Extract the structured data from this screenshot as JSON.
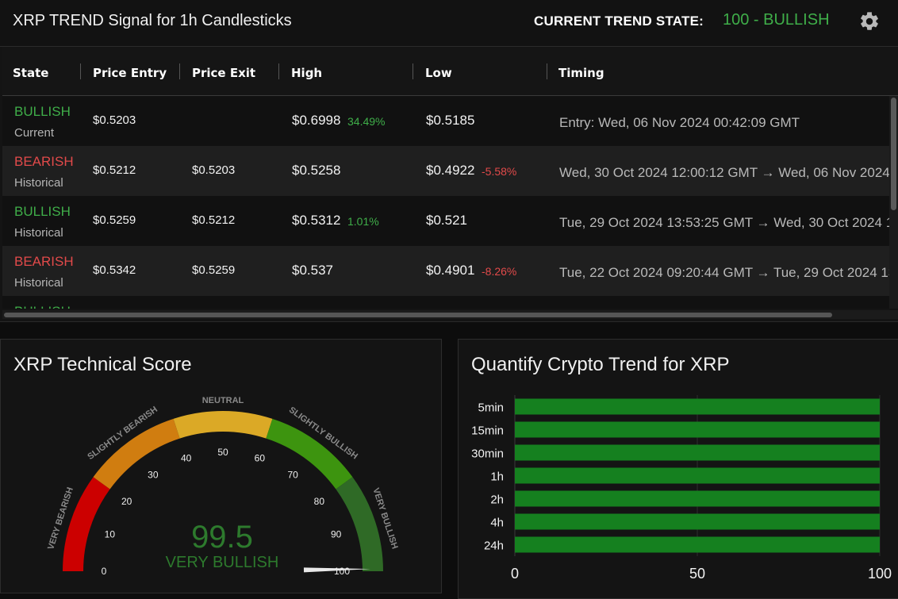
{
  "header": {
    "title": "XRP TREND Signal for 1h Candlesticks",
    "trend_label": "CURRENT TREND STATE:",
    "trend_value": "100 - BULLISH",
    "settings_icon": "gear-icon"
  },
  "table": {
    "columns": [
      "State",
      "Price Entry",
      "Price Exit",
      "High",
      "Low",
      "Timing"
    ],
    "rows": [
      {
        "state": "BULLISH",
        "sub": "Current",
        "entry": "$0.5203",
        "exit": "",
        "high": "$0.6998",
        "high_pct": "34.49%",
        "low": "$0.5185",
        "low_pct": "",
        "timing": "Entry: Wed, 06 Nov 2024 00:42:09 GMT"
      },
      {
        "state": "BEARISH",
        "sub": "Historical",
        "entry": "$0.5212",
        "exit": "$0.5203",
        "high": "$0.5258",
        "high_pct": "",
        "low": "$0.4922",
        "low_pct": "-5.58%",
        "timing": "Wed, 30 Oct 2024 12:00:12 GMT → Wed, 06 Nov 2024"
      },
      {
        "state": "BULLISH",
        "sub": "Historical",
        "entry": "$0.5259",
        "exit": "$0.5212",
        "high": "$0.5312",
        "high_pct": "1.01%",
        "low": "$0.521",
        "low_pct": "",
        "timing": "Tue, 29 Oct 2024 13:53:25 GMT → Wed, 30 Oct 2024 1"
      },
      {
        "state": "BEARISH",
        "sub": "Historical",
        "entry": "$0.5342",
        "exit": "$0.5259",
        "high": "$0.537",
        "high_pct": "",
        "low": "$0.4901",
        "low_pct": "-8.26%",
        "timing": "Tue, 22 Oct 2024 09:20:44 GMT → Tue, 29 Oct 2024 13"
      },
      {
        "state": "BULLISH",
        "sub": "",
        "entry": "",
        "exit": "",
        "high": "",
        "high_pct": "",
        "low": "",
        "low_pct": "",
        "timing": ""
      }
    ]
  },
  "score": {
    "title": "XRP Technical Score",
    "value": "99.5",
    "label": "VERY BULLISH",
    "needle_value": 99.5,
    "ticks": [
      "0",
      "10",
      "20",
      "30",
      "40",
      "50",
      "60",
      "70",
      "80",
      "90",
      "100"
    ],
    "bands": [
      {
        "label": "VERY BEARISH",
        "from": 0,
        "to": 20,
        "color": "#cc0000"
      },
      {
        "label": "SLIGHTLY BEARISH",
        "from": 20,
        "to": 40,
        "color": "#d07d10"
      },
      {
        "label": "NEUTRAL",
        "from": 40,
        "to": 60,
        "color": "#dba926"
      },
      {
        "label": "SLIGHTLY BULLISH",
        "from": 60,
        "to": 80,
        "color": "#3d940f"
      },
      {
        "label": "VERY BULLISH",
        "from": 80,
        "to": 100,
        "color": "#2f6a26"
      }
    ]
  },
  "trend": {
    "title": "Quantify Crypto Trend for XRP"
  },
  "chart_data": {
    "type": "bar",
    "orientation": "horizontal",
    "title": "Quantify Crypto Trend for XRP",
    "categories": [
      "5min",
      "15min",
      "30min",
      "1h",
      "2h",
      "4h",
      "24h"
    ],
    "values": [
      100,
      100,
      100,
      100,
      100,
      100,
      100
    ],
    "xlim": [
      0,
      100
    ],
    "xticks": [
      "0",
      "50",
      "100"
    ],
    "bar_color": "#15801f",
    "grid": true
  },
  "colors": {
    "bullish": "#3fae49",
    "bearish": "#e24a4a"
  }
}
